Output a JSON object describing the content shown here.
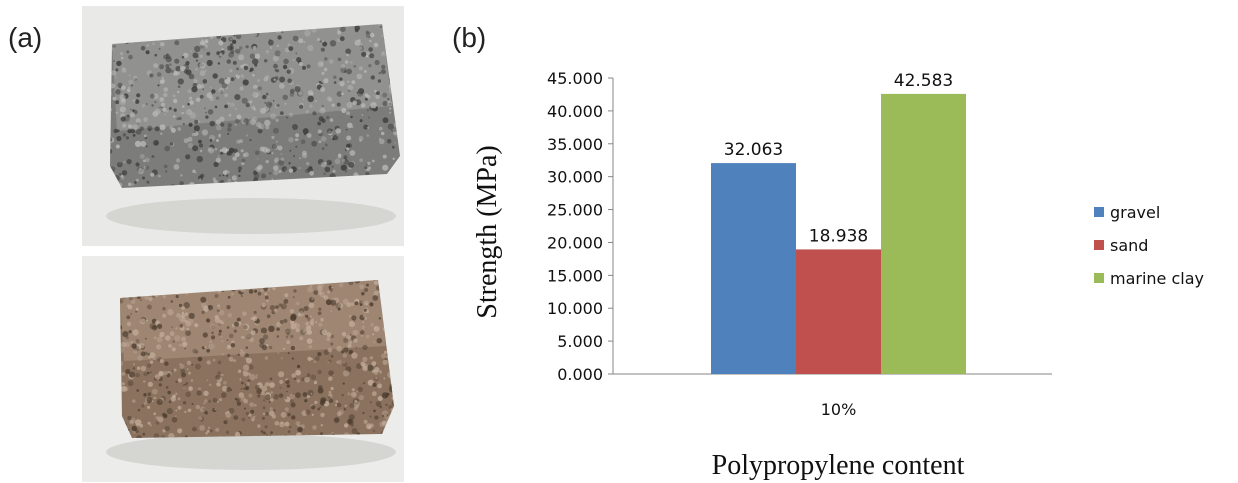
{
  "panels": {
    "a_label": "(a)",
    "b_label": "(b)"
  },
  "photos": [
    {
      "name": "gravel-brick-photo",
      "base": "#7c7c7a",
      "light": "#b9b9b6",
      "dark": "#3c3c3c",
      "bg": "#e9e9e7"
    },
    {
      "name": "marine-clay-brick-photo",
      "base": "#8a725e",
      "light": "#c2ad9a",
      "dark": "#4e3e30",
      "bg": "#ececea"
    }
  ],
  "chart_data": {
    "type": "bar",
    "categories": [
      "10%"
    ],
    "series": [
      {
        "name": "gravel",
        "values": [
          32.063
        ],
        "labels": [
          "32.063"
        ],
        "color": "#4f81bd"
      },
      {
        "name": "sand",
        "values": [
          18.938
        ],
        "labels": [
          "18.938"
        ],
        "color": "#c0504d"
      },
      {
        "name": "marine clay",
        "values": [
          42.583
        ],
        "labels": [
          "42.583"
        ],
        "color": "#9bbb59"
      }
    ],
    "xlabel": "Polypropylene content",
    "ylabel": "Strength (MPa)",
    "ylim": [
      0,
      45
    ],
    "yticks": [
      0,
      5,
      10,
      15,
      20,
      25,
      30,
      35,
      40,
      45
    ],
    "ytick_labels": [
      "0.000",
      "5.000",
      "10.000",
      "15.000",
      "20.000",
      "25.000",
      "30.000",
      "35.000",
      "40.000",
      "45.000"
    ],
    "grid": false,
    "legend_position": "right"
  }
}
